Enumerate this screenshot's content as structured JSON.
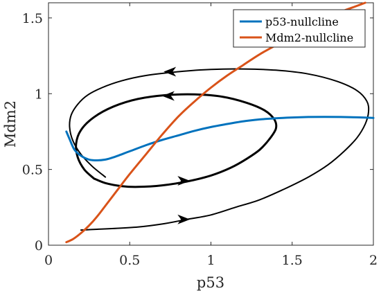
{
  "chart_data": {
    "type": "line",
    "xlabel": "p53",
    "ylabel": "Mdm2",
    "xlim": [
      0,
      2
    ],
    "ylim": [
      0,
      1.6
    ],
    "xticks": [
      0,
      0.5,
      1,
      1.5,
      2
    ],
    "xtick_labels": [
      "0",
      "0.5",
      "1",
      "1.5",
      "2"
    ],
    "yticks": [
      0,
      0.5,
      1,
      1.5
    ],
    "ytick_labels": [
      "0",
      "0.5",
      "1",
      "1.5"
    ],
    "grid": false,
    "legend_position": "top-right",
    "series": [
      {
        "name": "p53-nullcline",
        "color": "#0072BD",
        "x": [
          0.11,
          0.13,
          0.16,
          0.2,
          0.25,
          0.3,
          0.35,
          0.4,
          0.5,
          0.6,
          0.7,
          0.8,
          0.9,
          1.0,
          1.1,
          1.2,
          1.3,
          1.4,
          1.5,
          1.6,
          1.7,
          1.8,
          1.9,
          2.0
        ],
        "y": [
          0.75,
          0.7,
          0.63,
          0.59,
          0.565,
          0.56,
          0.565,
          0.58,
          0.62,
          0.66,
          0.695,
          0.725,
          0.755,
          0.78,
          0.8,
          0.818,
          0.83,
          0.838,
          0.843,
          0.846,
          0.847,
          0.846,
          0.844,
          0.84
        ]
      },
      {
        "name": "Mdm2-nullcline",
        "color": "#D95319",
        "x": [
          0.11,
          0.15,
          0.2,
          0.25,
          0.3,
          0.35,
          0.4,
          0.45,
          0.5,
          0.6,
          0.7,
          0.8,
          0.9,
          1.0,
          1.1,
          1.2,
          1.3,
          1.4,
          1.5,
          1.6,
          1.7,
          1.8,
          1.9,
          1.95
        ],
        "y": [
          0.02,
          0.04,
          0.08,
          0.13,
          0.19,
          0.26,
          0.33,
          0.4,
          0.47,
          0.6,
          0.73,
          0.85,
          0.95,
          1.04,
          1.12,
          1.19,
          1.26,
          1.32,
          1.38,
          1.44,
          1.49,
          1.54,
          1.58,
          1.6
        ]
      }
    ],
    "trajectories": [
      {
        "name": "outer",
        "color": "#000000",
        "x": [
          0.2,
          0.3,
          0.4,
          0.55,
          0.7,
          0.85,
          1.0,
          1.15,
          1.3,
          1.45,
          1.6,
          1.72,
          1.82,
          1.9,
          1.95,
          1.97,
          1.96,
          1.9,
          1.78,
          1.6,
          1.4,
          1.2,
          1.0,
          0.8,
          0.6,
          0.45,
          0.33,
          0.24,
          0.18,
          0.14,
          0.13,
          0.15,
          0.2,
          0.27,
          0.35
        ],
        "y": [
          0.1,
          0.105,
          0.11,
          0.12,
          0.14,
          0.17,
          0.2,
          0.25,
          0.3,
          0.37,
          0.45,
          0.53,
          0.62,
          0.71,
          0.8,
          0.88,
          0.95,
          1.02,
          1.08,
          1.13,
          1.155,
          1.163,
          1.16,
          1.145,
          1.12,
          1.085,
          1.04,
          0.99,
          0.93,
          0.86,
          0.78,
          0.69,
          0.6,
          0.52,
          0.45
        ]
      },
      {
        "name": "inner",
        "color": "#000000",
        "x": [
          0.28,
          0.35,
          0.45,
          0.55,
          0.7,
          0.85,
          1.0,
          1.12,
          1.22,
          1.3,
          1.36,
          1.4,
          1.39,
          1.33,
          1.22,
          1.07,
          0.9,
          0.72,
          0.55,
          0.4,
          0.28,
          0.2,
          0.17,
          0.18,
          0.22,
          0.28
        ],
        "y": [
          0.44,
          0.41,
          0.39,
          0.385,
          0.395,
          0.42,
          0.46,
          0.51,
          0.57,
          0.63,
          0.7,
          0.77,
          0.83,
          0.89,
          0.94,
          0.98,
          0.995,
          0.99,
          0.965,
          0.915,
          0.845,
          0.76,
          0.67,
          0.58,
          0.5,
          0.44
        ]
      }
    ],
    "arrows": [
      {
        "x": 0.82,
        "y": 0.17,
        "dir": "right"
      },
      {
        "x": 0.82,
        "y": 0.425,
        "dir": "right"
      },
      {
        "x": 0.75,
        "y": 0.985,
        "dir": "left"
      },
      {
        "x": 0.76,
        "y": 1.145,
        "dir": "left"
      }
    ]
  }
}
